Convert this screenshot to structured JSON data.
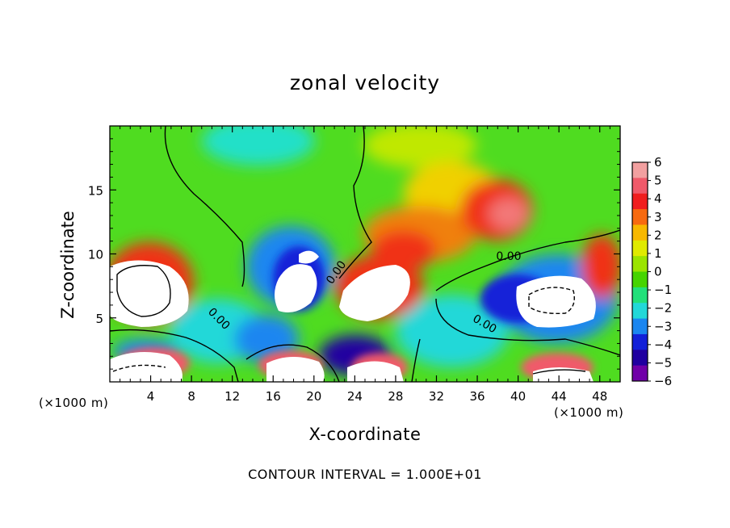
{
  "chart_data": {
    "type": "heatmap",
    "title": "zonal velocity",
    "xlabel": "X-coordinate",
    "ylabel": "Z-coordinate",
    "x_unit_note": "(×1000 m)",
    "x_unit_note_right": "(×1000 m)",
    "xlim": [
      0,
      50
    ],
    "ylim": [
      0,
      20
    ],
    "x_ticks": [
      4,
      8,
      12,
      16,
      20,
      24,
      28,
      32,
      36,
      40,
      44,
      48
    ],
    "y_ticks": [
      5,
      10,
      15
    ],
    "colorbar": {
      "ticks": [
        6,
        5,
        4,
        3,
        2,
        1,
        0,
        -1,
        -2,
        -3,
        -4,
        -5,
        -6
      ],
      "colors": [
        "#f2a0a0",
        "#f05a6a",
        "#f01e1e",
        "#f76a10",
        "#f7b800",
        "#e0ea00",
        "#9be400",
        "#46d400",
        "#22e07a",
        "#22d8d8",
        "#1a86f0",
        "#1220d8",
        "#2000a0",
        "#7000a8"
      ],
      "min": -6,
      "max": 6
    },
    "contour_labels": [
      "0.00",
      "0.00",
      "0.00",
      "0.00"
    ],
    "footer": "CONTOUR INTERVAL = 1.000E+01"
  }
}
